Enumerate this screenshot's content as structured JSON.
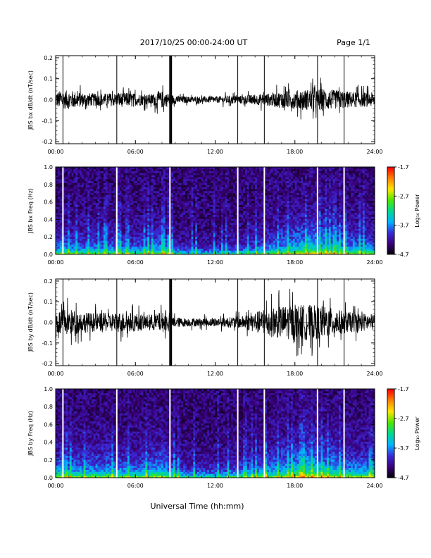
{
  "header": {
    "date_range": "2017/10/25  00:00-24:00 UT",
    "page": "Page 1/1"
  },
  "footer": {
    "xlabel": "Universal Time (hh:mm)"
  },
  "colors": {
    "trace": "#000000",
    "gap_lines": "#ffffff",
    "colorscale": [
      "#000000",
      "#3a007a",
      "#3a2ad8",
      "#00b4ff",
      "#00d890",
      "#50e600",
      "#ffe600",
      "#ff8000",
      "#ff0000"
    ]
  },
  "chart_data": [
    {
      "type": "line",
      "title": "",
      "ylabel": "JBS bx dB/dt (nT/sec)",
      "xlabel": "",
      "xlim": [
        "00:00",
        "24:00"
      ],
      "ylim": [
        -0.21,
        0.21
      ],
      "x_ticks": [
        "00:00",
        "06:00",
        "12:00",
        "18:00",
        "24:00"
      ],
      "y_ticks": [
        "-0.2",
        "-0.1",
        "0.0",
        "0.1",
        "0.2"
      ],
      "y_tick_values": [
        -0.2,
        -0.1,
        0.0,
        0.1,
        0.2
      ],
      "series": [
        {
          "hour": [
            0,
            1,
            2,
            3,
            4,
            5,
            6,
            7,
            8,
            9,
            10,
            11,
            12,
            13,
            14,
            15,
            16,
            17,
            18,
            19,
            20,
            21,
            22,
            23,
            24
          ],
          "envelope": [
            0.04,
            0.045,
            0.035,
            0.03,
            0.03,
            0.035,
            0.03,
            0.025,
            0.04,
            0.02,
            0.015,
            0.015,
            0.015,
            0.02,
            0.02,
            0.025,
            0.03,
            0.04,
            0.045,
            0.05,
            0.055,
            0.045,
            0.04,
            0.035,
            0.035
          ]
        }
      ],
      "spikes_hour": [
        0.55,
        4.6,
        8.6,
        8.7,
        13.7,
        15.7,
        19.7,
        21.7
      ],
      "grid": false
    },
    {
      "type": "heatmap",
      "title": "",
      "ylabel": "JBS bx Freq (Hz)",
      "xlabel": "",
      "xlim": [
        "00:00",
        "24:00"
      ],
      "ylim": [
        0.0,
        1.0
      ],
      "x_ticks": [
        "00:00",
        "06:00",
        "12:00",
        "18:00",
        "24:00"
      ],
      "y_ticks": [
        "0.0",
        "0.2",
        "0.4",
        "0.6",
        "0.8",
        "1.0"
      ],
      "y_tick_values": [
        0.0,
        0.2,
        0.4,
        0.6,
        0.8,
        1.0
      ],
      "colorbar": {
        "label": "Log₁₀ Power",
        "range": [
          -4.7,
          -1.7
        ],
        "ticks": [
          "-1.7",
          "-2.7",
          "-3.7",
          "-4.7"
        ],
        "tick_values": [
          -1.7,
          -2.7,
          -3.7,
          -4.7
        ]
      },
      "data_gaps_hour": [
        0.55,
        4.6,
        8.6,
        13.7,
        15.7,
        19.7,
        21.7
      ],
      "activity_profile": {
        "hour": [
          0,
          2,
          4,
          6,
          8,
          9,
          10,
          12,
          14,
          16,
          18,
          19,
          20,
          22,
          24
        ],
        "level": [
          0.5,
          0.45,
          0.45,
          0.4,
          0.55,
          0.3,
          0.2,
          0.2,
          0.3,
          0.45,
          0.65,
          0.75,
          0.7,
          0.55,
          0.5
        ]
      }
    },
    {
      "type": "line",
      "title": "",
      "ylabel": "JBS by dB/dt (nT/sec)",
      "xlabel": "",
      "xlim": [
        "00:00",
        "24:00"
      ],
      "ylim": [
        -0.21,
        0.21
      ],
      "x_ticks": [
        "00:00",
        "06:00",
        "12:00",
        "18:00",
        "24:00"
      ],
      "y_ticks": [
        "-0.2",
        "-0.1",
        "0.0",
        "0.1",
        "0.2"
      ],
      "y_tick_values": [
        -0.2,
        -0.1,
        0.0,
        0.1,
        0.2
      ],
      "series": [
        {
          "hour": [
            0,
            1,
            2,
            3,
            4,
            5,
            6,
            7,
            8,
            9,
            10,
            11,
            12,
            13,
            14,
            15,
            16,
            17,
            18,
            19,
            20,
            21,
            22,
            23,
            24
          ],
          "envelope": [
            0.06,
            0.065,
            0.05,
            0.045,
            0.045,
            0.05,
            0.045,
            0.035,
            0.05,
            0.025,
            0.02,
            0.02,
            0.02,
            0.025,
            0.03,
            0.05,
            0.07,
            0.08,
            0.085,
            0.085,
            0.08,
            0.065,
            0.05,
            0.045,
            0.04
          ]
        }
      ],
      "spikes_hour": [
        0.55,
        4.6,
        8.6,
        8.7,
        13.7,
        15.7,
        19.7,
        21.7
      ],
      "grid": false
    },
    {
      "type": "heatmap",
      "title": "",
      "ylabel": "JBS by Freq (Hz)",
      "xlabel": "",
      "xlim": [
        "00:00",
        "24:00"
      ],
      "ylim": [
        0.0,
        1.0
      ],
      "x_ticks": [
        "00:00",
        "06:00",
        "12:00",
        "18:00",
        "24:00"
      ],
      "y_ticks": [
        "0.0",
        "0.2",
        "0.4",
        "0.6",
        "0.8",
        "1.0"
      ],
      "y_tick_values": [
        0.0,
        0.2,
        0.4,
        0.6,
        0.8,
        1.0
      ],
      "colorbar": {
        "label": "Log₁₀ Power",
        "range": [
          -4.7,
          -1.7
        ],
        "ticks": [
          "-1.7",
          "-2.7",
          "-3.7",
          "-4.7"
        ],
        "tick_values": [
          -1.7,
          -2.7,
          -3.7,
          -4.7
        ]
      },
      "data_gaps_hour": [
        0.55,
        4.6,
        8.6,
        13.7,
        15.7,
        19.7,
        21.7
      ],
      "activity_profile": {
        "hour": [
          0,
          2,
          4,
          6,
          8,
          9,
          10,
          12,
          14,
          16,
          18,
          19,
          20,
          22,
          24
        ],
        "level": [
          0.6,
          0.55,
          0.55,
          0.5,
          0.65,
          0.4,
          0.3,
          0.3,
          0.4,
          0.55,
          0.7,
          0.8,
          0.75,
          0.6,
          0.55
        ]
      }
    }
  ]
}
